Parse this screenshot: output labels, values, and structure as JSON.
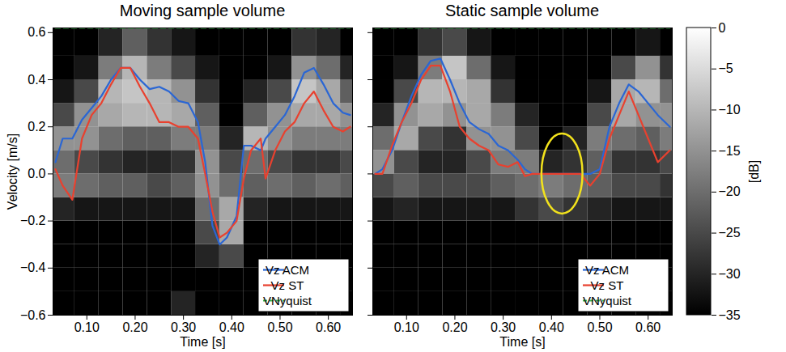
{
  "chart_data": [
    {
      "type": "line",
      "title": "Moving sample volume",
      "xlabel": "Time [s]",
      "ylabel": "Velocity [m/s]",
      "xlim": [
        0.03,
        0.65
      ],
      "xticks": [
        0.1,
        0.2,
        0.3,
        0.4,
        0.5,
        0.6
      ],
      "ylim": [
        -0.6,
        0.62
      ],
      "yticks": [
        -0.6,
        -0.4,
        -0.2,
        0,
        0.2,
        0.4,
        0.6
      ],
      "grid": false,
      "legend": "lower right",
      "x": [
        0.035,
        0.05,
        0.07,
        0.09,
        0.11,
        0.13,
        0.15,
        0.17,
        0.19,
        0.21,
        0.23,
        0.25,
        0.27,
        0.29,
        0.31,
        0.33,
        0.345,
        0.36,
        0.375,
        0.39,
        0.41,
        0.425,
        0.44,
        0.46,
        0.47,
        0.49,
        0.51,
        0.53,
        0.55,
        0.57,
        0.59,
        0.61,
        0.63,
        0.645
      ],
      "series": [
        {
          "name": "Vz ACM",
          "color": "#2a66d4",
          "line_style": "solid",
          "values": [
            0.05,
            0.15,
            0.15,
            0.23,
            0.28,
            0.33,
            0.4,
            0.45,
            0.45,
            0.4,
            0.36,
            0.37,
            0.35,
            0.31,
            0.3,
            0.22,
            0.05,
            -0.22,
            -0.3,
            -0.27,
            -0.18,
            0.12,
            0.12,
            0.1,
            0.15,
            0.2,
            0.25,
            0.33,
            0.43,
            0.45,
            0.38,
            0.3,
            0.26,
            0.25
          ]
        },
        {
          "name": "Vz ST",
          "color": "#e8412f",
          "line_style": "solid",
          "values": [
            0.02,
            -0.05,
            -0.11,
            0.15,
            0.25,
            0.3,
            0.38,
            0.45,
            0.45,
            0.37,
            0.3,
            0.22,
            0.22,
            0.2,
            0.2,
            0.15,
            0.0,
            -0.16,
            -0.27,
            -0.25,
            -0.2,
            -0.02,
            0.1,
            0.15,
            -0.02,
            0.1,
            0.18,
            0.22,
            0.3,
            0.35,
            0.27,
            0.2,
            0.18,
            0.2
          ]
        },
        {
          "name": "VNyquist",
          "color": "#39b54a",
          "line_style": "dashed",
          "values": [
            0.62,
            0.62,
            0.62,
            0.62,
            0.62,
            0.62,
            0.62,
            0.62,
            0.62,
            0.62,
            0.62,
            0.62,
            0.62,
            0.62,
            0.62,
            0.62,
            0.62,
            0.62,
            0.62,
            0.62,
            0.62,
            0.62,
            0.62,
            0.62,
            0.62,
            0.62,
            0.62,
            0.62,
            0.62,
            0.62,
            0.62,
            0.62,
            0.62,
            0.62
          ]
        }
      ],
      "spectrogram": {
        "time_bins": [
          0.025,
          0.075,
          0.125,
          0.175,
          0.225,
          0.275,
          0.325,
          0.375,
          0.425,
          0.475,
          0.525,
          0.575,
          0.625,
          0.675
        ],
        "velocity_bins": [
          -0.6,
          -0.5,
          -0.4,
          -0.3,
          -0.2,
          -0.1,
          0,
          0.1,
          0.2,
          0.3,
          0.4,
          0.5,
          0.62
        ],
        "db": [
          [
            -35,
            -35,
            -35,
            -35,
            -35,
            -30,
            -35,
            -35,
            -35,
            -35,
            -35,
            -35,
            -35
          ],
          [
            -35,
            -35,
            -35,
            -35,
            -35,
            -35,
            -35,
            -35,
            -35,
            -35,
            -35,
            -35,
            -35
          ],
          [
            -35,
            -35,
            -35,
            -35,
            -35,
            -35,
            -30,
            -25,
            -35,
            -35,
            -35,
            -35,
            -35
          ],
          [
            -35,
            -35,
            -35,
            -35,
            -35,
            -35,
            -25,
            -12,
            -35,
            -35,
            -35,
            -35,
            -35
          ],
          [
            -30,
            -32,
            -32,
            -32,
            -32,
            -32,
            -20,
            -12,
            -30,
            -32,
            -32,
            -32,
            -32
          ],
          [
            -18,
            -20,
            -22,
            -22,
            -25,
            -22,
            -15,
            -20,
            -22,
            -20,
            -22,
            -20,
            -22
          ],
          [
            -20,
            -25,
            -28,
            -30,
            -30,
            -28,
            -15,
            -25,
            -20,
            -25,
            -28,
            -28,
            -25
          ],
          [
            -15,
            -15,
            -20,
            -22,
            -22,
            -18,
            -18,
            -30,
            -10,
            -15,
            -18,
            -18,
            -18
          ],
          [
            -25,
            -15,
            -12,
            -10,
            -10,
            -12,
            -22,
            -35,
            -22,
            -15,
            -12,
            -12,
            -15
          ],
          [
            -32,
            -25,
            -10,
            -8,
            -10,
            -15,
            -28,
            -35,
            -30,
            -25,
            -8,
            -12,
            -22
          ],
          [
            -35,
            -32,
            -18,
            -10,
            -18,
            -25,
            -32,
            -35,
            -35,
            -32,
            -15,
            -20,
            -30
          ],
          [
            -35,
            -35,
            -30,
            -22,
            -28,
            -32,
            -35,
            -35,
            -35,
            -35,
            -28,
            -30,
            -35
          ]
        ]
      }
    },
    {
      "type": "line",
      "title": "Static sample volume",
      "xlabel": "Time [s]",
      "xlim": [
        0.03,
        0.65
      ],
      "xticks": [
        0.1,
        0.2,
        0.3,
        0.4,
        0.5,
        0.6
      ],
      "ylim": [
        -0.6,
        0.62
      ],
      "yticks": [
        -0.6,
        -0.4,
        -0.2,
        0,
        0.2,
        0.4,
        0.6
      ],
      "tick_labels": "x",
      "grid": false,
      "legend": "lower right",
      "x": [
        0.035,
        0.05,
        0.07,
        0.09,
        0.11,
        0.13,
        0.15,
        0.17,
        0.19,
        0.21,
        0.23,
        0.25,
        0.27,
        0.29,
        0.31,
        0.33,
        0.345,
        0.36,
        0.38,
        0.4,
        0.42,
        0.44,
        0.46,
        0.48,
        0.5,
        0.52,
        0.54,
        0.56,
        0.58,
        0.6,
        0.62,
        0.645
      ],
      "series": [
        {
          "name": "Vz ACM",
          "color": "#2a66d4",
          "line_style": "solid",
          "values": [
            0.0,
            0.02,
            0.1,
            0.22,
            0.33,
            0.42,
            0.48,
            0.49,
            0.4,
            0.3,
            0.22,
            0.19,
            0.17,
            0.12,
            0.1,
            0.06,
            0.02,
            0,
            0,
            0,
            0,
            0,
            0,
            0,
            0.02,
            0.2,
            0.3,
            0.38,
            0.35,
            0.3,
            0.25,
            0.2
          ]
        },
        {
          "name": "Vz ST",
          "color": "#e8412f",
          "line_style": "solid",
          "values": [
            0.0,
            0.0,
            0.12,
            0.22,
            0.3,
            0.4,
            0.46,
            0.46,
            0.35,
            0.2,
            0.15,
            0.12,
            0.1,
            0.04,
            0.03,
            0.05,
            -0.01,
            0,
            0,
            0,
            0,
            0,
            0,
            -0.05,
            0.0,
            0.15,
            0.25,
            0.35,
            0.25,
            0.15,
            0.05,
            0.1
          ]
        },
        {
          "name": "VNyquist",
          "color": "#39b54a",
          "line_style": "dashed",
          "values": [
            0.62,
            0.62,
            0.62,
            0.62,
            0.62,
            0.62,
            0.62,
            0.62,
            0.62,
            0.62,
            0.62,
            0.62,
            0.62,
            0.62,
            0.62,
            0.62,
            0.62,
            0.62,
            0.62,
            0.62,
            0.62,
            0.62,
            0.62,
            0.62,
            0.62,
            0.62,
            0.62,
            0.62,
            0.62,
            0.62,
            0.62,
            0.62
          ]
        }
      ],
      "highlight": {
        "x": [
          0.38,
          0.465
        ],
        "y": [
          -0.17,
          0.17
        ],
        "color": "#f2e21c"
      },
      "spectrogram": {
        "time_bins": [
          0.025,
          0.075,
          0.125,
          0.175,
          0.225,
          0.275,
          0.325,
          0.375,
          0.425,
          0.475,
          0.525,
          0.575,
          0.625,
          0.675
        ],
        "velocity_bins": [
          -0.6,
          -0.5,
          -0.4,
          -0.3,
          -0.2,
          -0.1,
          0,
          0.1,
          0.2,
          0.3,
          0.4,
          0.5,
          0.62
        ],
        "db": [
          [
            -35,
            -35,
            -35,
            -35,
            -35,
            -35,
            -35,
            -35,
            -35,
            -35,
            -35,
            -35,
            -35
          ],
          [
            -35,
            -35,
            -35,
            -35,
            -35,
            -35,
            -35,
            -35,
            -35,
            -35,
            -35,
            -35,
            -35
          ],
          [
            -35,
            -35,
            -35,
            -35,
            -35,
            -35,
            -35,
            -35,
            -35,
            -35,
            -35,
            -35,
            -35
          ],
          [
            -35,
            -35,
            -35,
            -35,
            -35,
            -35,
            -35,
            -35,
            -35,
            -35,
            -35,
            -35,
            -35
          ],
          [
            -32,
            -30,
            -32,
            -32,
            -32,
            -32,
            -28,
            -25,
            -28,
            -30,
            -32,
            -32,
            -32
          ],
          [
            -25,
            -22,
            -25,
            -25,
            -25,
            -22,
            -20,
            -18,
            -20,
            -22,
            -25,
            -25,
            -28
          ],
          [
            -15,
            -25,
            -30,
            -30,
            -25,
            -18,
            -18,
            -30,
            -28,
            -22,
            -28,
            -28,
            -25
          ],
          [
            -20,
            -12,
            -25,
            -28,
            -15,
            -15,
            -25,
            -35,
            -30,
            -18,
            -20,
            -22,
            -18
          ],
          [
            -30,
            -15,
            -12,
            -15,
            -12,
            -18,
            -30,
            -35,
            -35,
            -25,
            -12,
            -15,
            -15
          ],
          [
            -35,
            -25,
            -10,
            -10,
            -12,
            -28,
            -35,
            -35,
            -35,
            -32,
            -12,
            -10,
            -20
          ],
          [
            -35,
            -32,
            -18,
            -8,
            -20,
            -32,
            -35,
            -35,
            -35,
            -35,
            -25,
            -15,
            -28
          ],
          [
            -35,
            -35,
            -28,
            -25,
            -32,
            -35,
            -35,
            -35,
            -35,
            -35,
            -35,
            -32,
            -35
          ]
        ]
      },
      "colorbar": {
        "range": [
          -35,
          0
        ],
        "ticks": [
          -35,
          -30,
          -25,
          -20,
          -15,
          -10,
          -5,
          0
        ],
        "label": "[dB]"
      }
    }
  ]
}
